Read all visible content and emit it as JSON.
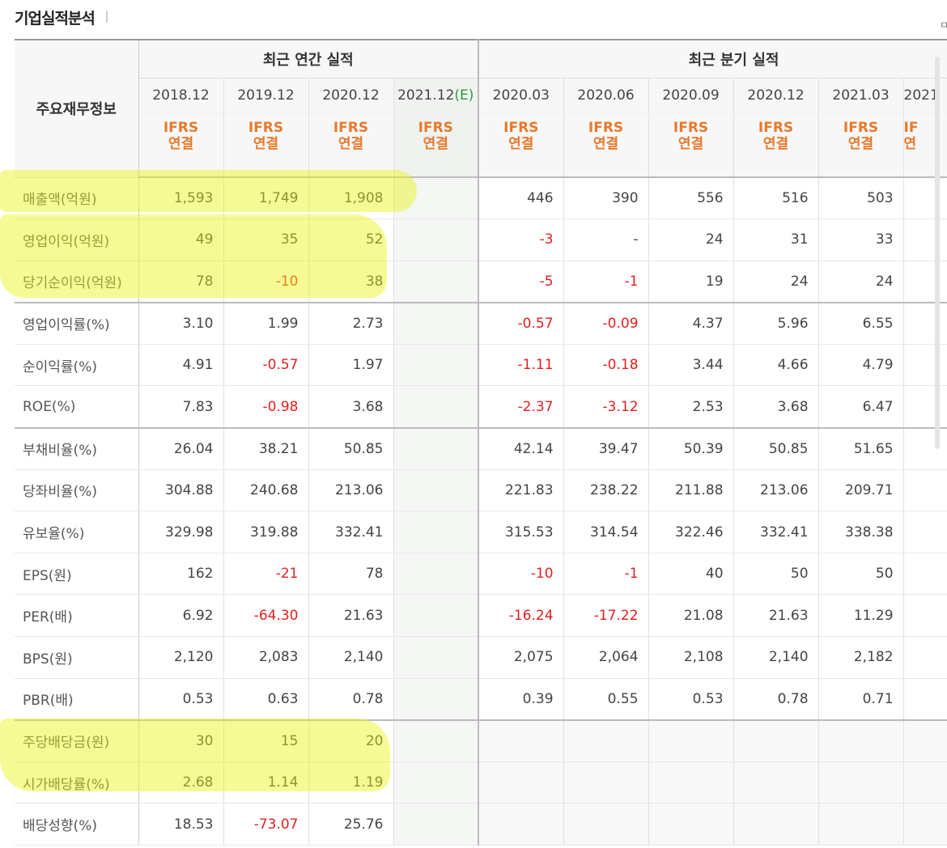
{
  "title": "기업실적분석",
  "corner_glyph": "ㅁ",
  "header": {
    "main_label": "주요재무정보",
    "annual_group": "최근 연간 실적",
    "quarter_group": "최근 분기 실적",
    "annual_periods": [
      "2018.12",
      "2019.12",
      "2020.12",
      "2021.12"
    ],
    "estimate_mark": "(E)",
    "quarter_periods": [
      "2020.03",
      "2020.06",
      "2020.09",
      "2020.12",
      "2021.03",
      "2021"
    ],
    "ifrs_line1": "IFRS",
    "ifrs_line2": "연결",
    "ifrs_cut_line1": "IF",
    "ifrs_cut_line2": "연"
  },
  "rows": [
    {
      "label": "매출액(억원)",
      "values": [
        "1,593",
        "1,749",
        "1,908",
        "",
        "446",
        "390",
        "556",
        "516",
        "503",
        ""
      ]
    },
    {
      "label": "영업이익(억원)",
      "values": [
        "49",
        "35",
        "52",
        "",
        "-3",
        "-",
        "24",
        "31",
        "33",
        ""
      ]
    },
    {
      "label": "당기순이익(억원)",
      "values": [
        "78",
        "-10",
        "38",
        "",
        "-5",
        "-1",
        "19",
        "24",
        "24",
        ""
      ]
    },
    {
      "label": "영업이익률(%)",
      "values": [
        "3.10",
        "1.99",
        "2.73",
        "",
        "-0.57",
        "-0.09",
        "4.37",
        "5.96",
        "6.55",
        ""
      ]
    },
    {
      "label": "순이익률(%)",
      "values": [
        "4.91",
        "-0.57",
        "1.97",
        "",
        "-1.11",
        "-0.18",
        "3.44",
        "4.66",
        "4.79",
        ""
      ]
    },
    {
      "label": "ROE(%)",
      "values": [
        "7.83",
        "-0.98",
        "3.68",
        "",
        "-2.37",
        "-3.12",
        "2.53",
        "3.68",
        "6.47",
        ""
      ]
    },
    {
      "label": "부채비율(%)",
      "values": [
        "26.04",
        "38.21",
        "50.85",
        "",
        "42.14",
        "39.47",
        "50.39",
        "50.85",
        "51.65",
        ""
      ]
    },
    {
      "label": "당좌비율(%)",
      "values": [
        "304.88",
        "240.68",
        "213.06",
        "",
        "221.83",
        "238.22",
        "211.88",
        "213.06",
        "209.71",
        ""
      ]
    },
    {
      "label": "유보율(%)",
      "values": [
        "329.98",
        "319.88",
        "332.41",
        "",
        "315.53",
        "314.54",
        "322.46",
        "332.41",
        "338.38",
        ""
      ]
    },
    {
      "label": "EPS(원)",
      "values": [
        "162",
        "-21",
        "78",
        "",
        "-10",
        "-1",
        "40",
        "50",
        "50",
        ""
      ]
    },
    {
      "label": "PER(배)",
      "values": [
        "6.92",
        "-64.30",
        "21.63",
        "",
        "-16.24",
        "-17.22",
        "21.08",
        "21.63",
        "11.29",
        ""
      ]
    },
    {
      "label": "BPS(원)",
      "values": [
        "2,120",
        "2,083",
        "2,140",
        "",
        "2,075",
        "2,064",
        "2,108",
        "2,140",
        "2,182",
        ""
      ]
    },
    {
      "label": "PBR(배)",
      "values": [
        "0.53",
        "0.63",
        "0.78",
        "",
        "0.39",
        "0.55",
        "0.53",
        "0.78",
        "0.71",
        ""
      ]
    },
    {
      "label": "주당배당금(원)",
      "values": [
        "30",
        "15",
        "20",
        "",
        "",
        "",
        "",
        "",
        "",
        ""
      ]
    },
    {
      "label": "시가배당률(%)",
      "values": [
        "2.68",
        "1.14",
        "1.19",
        "",
        "",
        "",
        "",
        "",
        "",
        ""
      ]
    },
    {
      "label": "배당성향(%)",
      "values": [
        "18.53",
        "-73.07",
        "25.76",
        "",
        "",
        "",
        "",
        "",
        "",
        ""
      ]
    }
  ],
  "colors": {
    "negative": "#e02020",
    "ifrs": "#e8792c",
    "estimate": "#2a9a3a",
    "highlighter": "#ebf514"
  }
}
